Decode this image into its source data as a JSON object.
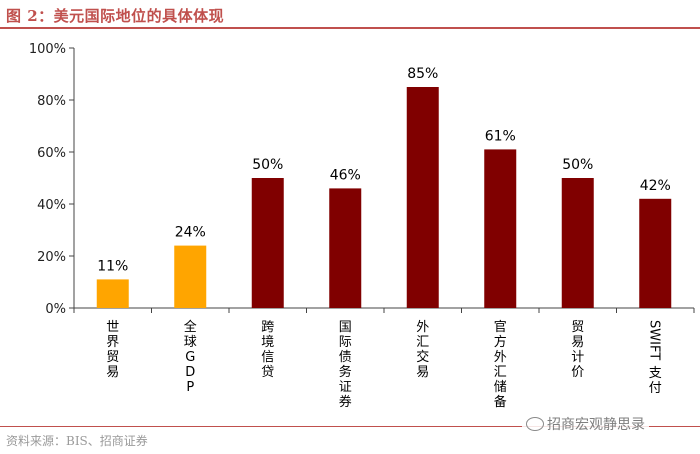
{
  "header": {
    "title": "图 2：美元国际地位的具体体现"
  },
  "footer": {
    "source": "资料来源：BIS、招商证券"
  },
  "watermark": {
    "text": "招商宏观静思录"
  },
  "colors": {
    "highlight": "#ffa500",
    "main": "#800000",
    "accent": "#c0504d"
  },
  "chart_data": {
    "type": "bar",
    "categories": [
      "世界贸易",
      "全球GDP",
      "跨境信贷",
      "国际债务证券",
      "外汇交易",
      "官方外汇储备",
      "贸易计价",
      "SWIFT支付"
    ],
    "values": [
      11,
      24,
      50,
      46,
      85,
      61,
      50,
      42
    ],
    "data_labels": [
      "11%",
      "24%",
      "50%",
      "46%",
      "85%",
      "61%",
      "50%",
      "42%"
    ],
    "bar_colors": [
      "#ffa500",
      "#ffa500",
      "#800000",
      "#800000",
      "#800000",
      "#800000",
      "#800000",
      "#800000"
    ],
    "y_ticks": [
      "0%",
      "20%",
      "40%",
      "60%",
      "80%",
      "100%"
    ],
    "ylim": [
      0,
      100
    ],
    "xlabel": "",
    "ylabel": "",
    "grid": false,
    "legend": "none"
  }
}
